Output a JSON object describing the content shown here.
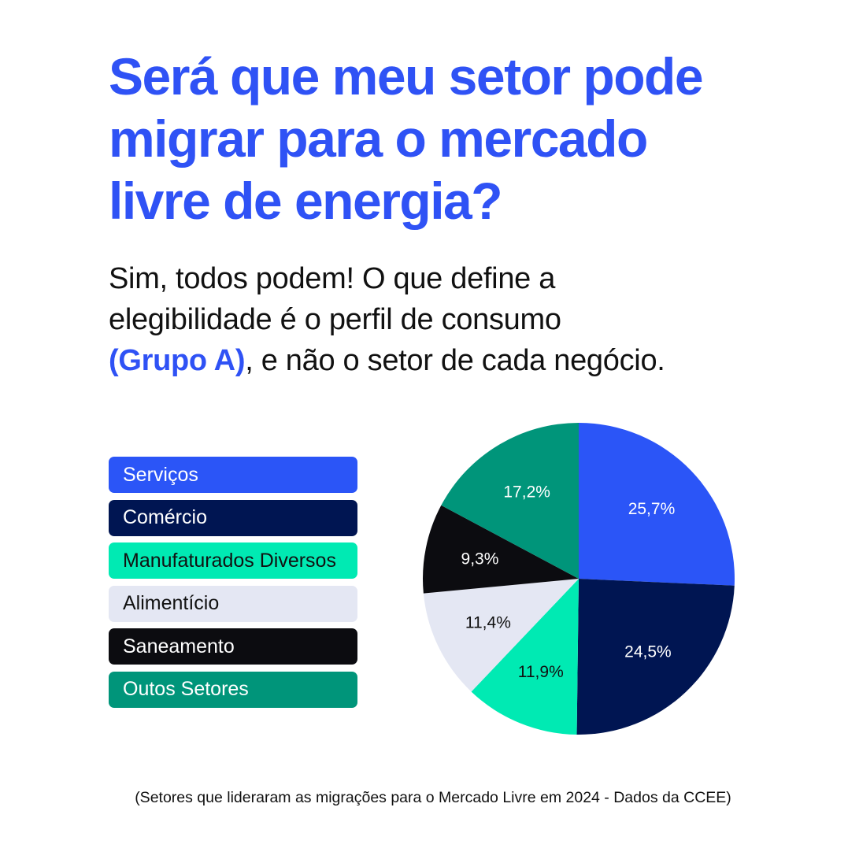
{
  "title": {
    "line1": "Será que meu setor pode",
    "line2": "migrar para o mercado",
    "line3": "livre de energia?"
  },
  "subtitle": {
    "line1": "Sim, todos podem! O que define a",
    "line2": "elegibilidade é o perfil de consumo",
    "highlight": "(Grupo A)",
    "line3_rest": ", e não o setor de cada negócio."
  },
  "colors": {
    "brand_blue": "#2f52f5",
    "background": "#ffffff"
  },
  "chart_data": {
    "type": "pie",
    "categories": [
      "Serviços",
      "Comércio",
      "Manufaturados Diversos",
      "Alimentício",
      "Saneamento",
      "Outos Setores"
    ],
    "values": [
      25.7,
      24.5,
      11.9,
      11.4,
      9.3,
      17.2
    ],
    "labels": [
      "25,7%",
      "24,5%",
      "11,9%",
      "11,4%",
      "9,3%",
      "17,2%"
    ],
    "colors": [
      "#2b55f7",
      "#001552",
      "#00eab3",
      "#e4e7f3",
      "#0c0c10",
      "#00957a"
    ],
    "legend_text_colors": [
      "#ffffff",
      "#ffffff",
      "#111111",
      "#111111",
      "#ffffff",
      "#ffffff"
    ],
    "label_text_colors": [
      "#ffffff",
      "#ffffff",
      "#111111",
      "#111111",
      "#ffffff",
      "#ffffff"
    ],
    "legend_position": "left"
  },
  "footnote": "(Setores que lideraram as migrações para o Mercado Livre em 2024 - Dados da CCEE)"
}
